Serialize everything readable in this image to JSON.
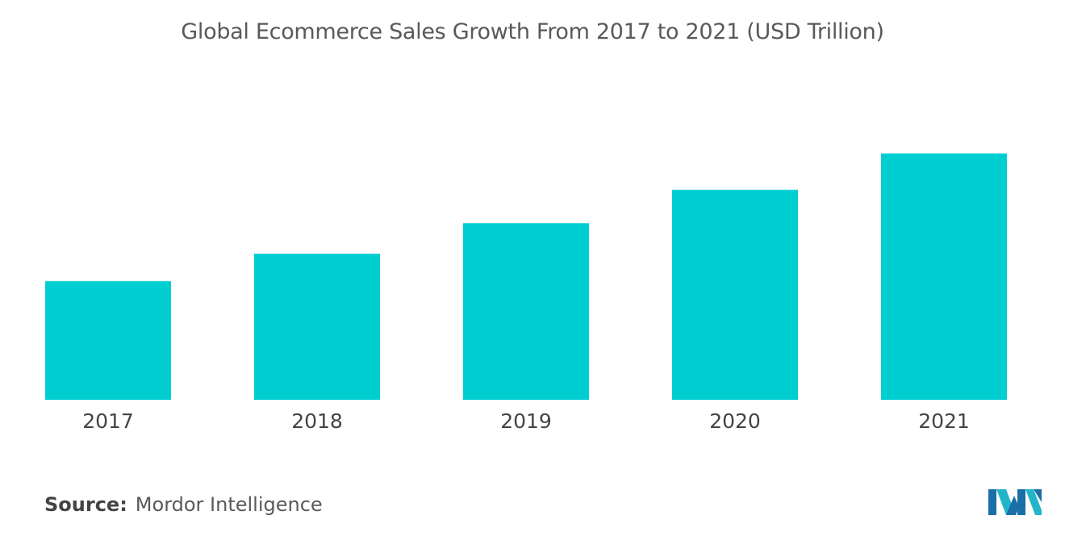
{
  "chart_data": {
    "type": "bar",
    "title": "Global Ecommerce Sales Growth From 2017 to 2021 (USD Trillion)",
    "categories": [
      "2017",
      "2018",
      "2019",
      "2020",
      "2021"
    ],
    "values": [
      2.38,
      2.93,
      3.54,
      4.21,
      4.94
    ],
    "xlabel": "",
    "ylabel": "",
    "ylim": [
      0,
      5.4
    ],
    "grid": false,
    "legend": "none",
    "bar_color": "#00CED1"
  },
  "source": {
    "label": "Source:",
    "text": "Mordor Intelligence"
  },
  "logo": {
    "icon": "mordor-intelligence-logo-icon",
    "colors": [
      "#1B6FA8",
      "#22B5C9"
    ]
  }
}
